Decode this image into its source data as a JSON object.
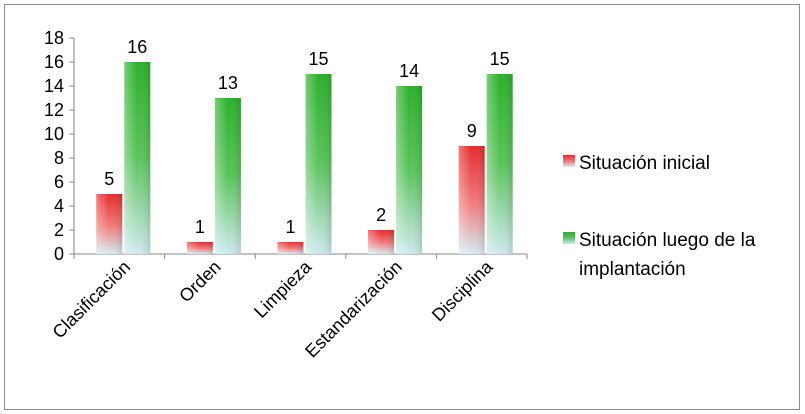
{
  "chart_data": {
    "type": "bar",
    "categories": [
      "Clasificación",
      "Orden",
      "Limpieza",
      "Estandarización",
      "Disciplina"
    ],
    "series": [
      {
        "name": "Situación inicial",
        "values": [
          5,
          1,
          1,
          2,
          9
        ],
        "color": "#e8282a"
      },
      {
        "name": "Situación luego de la implantación",
        "values": [
          16,
          13,
          15,
          14,
          15
        ],
        "color": "#2eb22e"
      }
    ],
    "ylim": [
      0,
      18
    ],
    "yticks": [
      0,
      2,
      4,
      6,
      8,
      10,
      12,
      14,
      16,
      18
    ],
    "grid": false,
    "legend_position": "right"
  },
  "legend": {
    "series_0_label": "Situación inicial",
    "series_1_line1": "Situación luego de la",
    "series_1_line2": "implantación"
  }
}
